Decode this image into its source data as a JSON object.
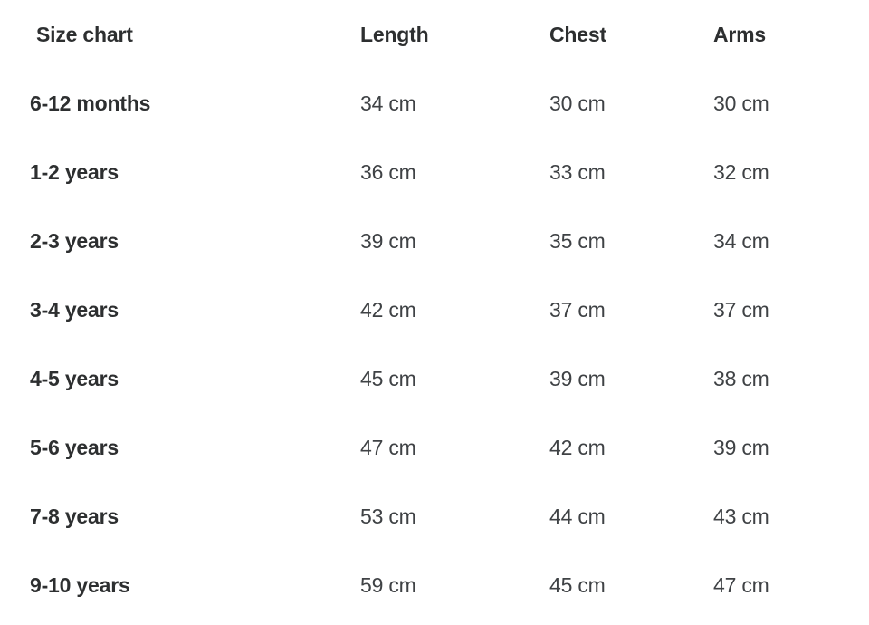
{
  "chart_data": {
    "type": "table",
    "title": "Size chart",
    "columns": [
      "Size chart",
      "Length",
      "Chest",
      "Arms"
    ],
    "rows": [
      [
        "6-12 months",
        "34 cm",
        "30 cm",
        "30 cm"
      ],
      [
        "1-2 years",
        "36 cm",
        "33 cm",
        "32 cm"
      ],
      [
        "2-3 years",
        "39 cm",
        "35 cm",
        "34 cm"
      ],
      [
        "3-4 years",
        "42 cm",
        "37 cm",
        "37 cm"
      ],
      [
        "4-5 years",
        "45 cm",
        "39 cm",
        "38 cm"
      ],
      [
        "5-6 years",
        "47 cm",
        "42 cm",
        "39 cm"
      ],
      [
        "7-8 years",
        "53 cm",
        "44 cm",
        "43 cm"
      ],
      [
        "9-10 years",
        "59 cm",
        "45 cm",
        "47 cm"
      ]
    ],
    "layout": {
      "grid": false,
      "borders": false,
      "header_position": "top-row"
    }
  },
  "colors": {
    "background": "#ffffff",
    "heading_text": "#2d2f30",
    "value_text": "#3f4245"
  }
}
